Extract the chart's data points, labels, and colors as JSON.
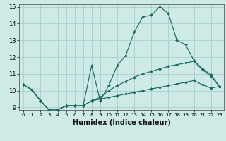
{
  "xlabel": "Humidex (Indice chaleur)",
  "bg_color": "#ceeae7",
  "grid_color": "#aacfcc",
  "line_color": "#1a6b5a",
  "xlim": [
    -0.5,
    23.5
  ],
  "ylim": [
    8.85,
    15.15
  ],
  "xticks": [
    0,
    1,
    2,
    3,
    4,
    5,
    6,
    7,
    8,
    9,
    10,
    11,
    12,
    13,
    14,
    15,
    16,
    17,
    18,
    19,
    20,
    21,
    22,
    23
  ],
  "yticks": [
    9,
    10,
    11,
    12,
    13,
    14,
    15
  ],
  "line1_x": [
    0,
    1,
    2,
    3,
    4,
    5,
    6,
    7,
    8,
    9,
    10,
    11,
    12,
    13,
    14,
    15,
    16,
    17,
    18,
    19,
    20,
    21,
    22,
    23
  ],
  "line1_y": [
    10.35,
    10.05,
    9.4,
    8.85,
    8.85,
    9.1,
    9.1,
    9.1,
    11.5,
    9.4,
    10.3,
    11.5,
    12.1,
    13.5,
    14.4,
    14.5,
    15.0,
    14.6,
    13.0,
    12.75,
    11.8,
    11.3,
    10.95,
    10.25
  ],
  "line2_x": [
    0,
    1,
    2,
    3,
    4,
    5,
    6,
    7,
    8,
    9,
    10,
    11,
    12,
    13,
    14,
    15,
    16,
    17,
    18,
    19,
    20,
    21,
    22,
    23
  ],
  "line2_y": [
    10.35,
    10.05,
    9.4,
    8.85,
    8.85,
    9.1,
    9.1,
    9.1,
    9.4,
    9.6,
    10.0,
    10.3,
    10.55,
    10.8,
    11.0,
    11.15,
    11.3,
    11.45,
    11.55,
    11.65,
    11.75,
    11.25,
    10.85,
    10.25
  ],
  "line3_x": [
    0,
    1,
    2,
    3,
    4,
    5,
    6,
    7,
    8,
    9,
    10,
    11,
    12,
    13,
    14,
    15,
    16,
    17,
    18,
    19,
    20,
    21,
    22,
    23
  ],
  "line3_y": [
    10.35,
    10.05,
    9.4,
    8.85,
    8.85,
    9.1,
    9.1,
    9.1,
    9.4,
    9.5,
    9.6,
    9.7,
    9.8,
    9.9,
    10.0,
    10.1,
    10.2,
    10.3,
    10.4,
    10.5,
    10.6,
    10.35,
    10.15,
    10.25
  ]
}
